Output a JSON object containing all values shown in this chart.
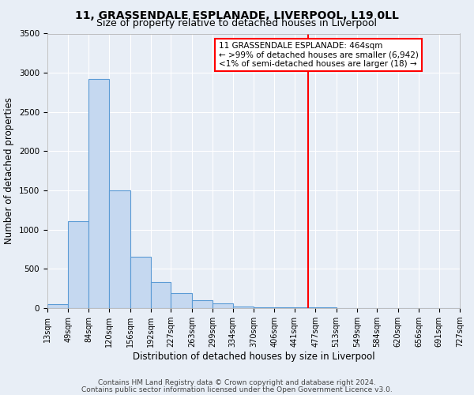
{
  "title": "11, GRASSENDALE ESPLANADE, LIVERPOOL, L19 0LL",
  "subtitle": "Size of property relative to detached houses in Liverpool",
  "xlabel": "Distribution of detached houses by size in Liverpool",
  "ylabel": "Number of detached properties",
  "bar_edges": [
    13,
    49,
    84,
    120,
    156,
    192,
    227,
    263,
    299,
    334,
    370,
    406,
    441,
    477,
    513,
    549,
    584,
    620,
    656,
    691,
    727
  ],
  "bar_heights": [
    50,
    1110,
    2920,
    1500,
    650,
    330,
    195,
    100,
    60,
    25,
    10,
    10,
    10,
    10,
    5,
    5,
    5,
    5,
    5,
    5
  ],
  "bar_color": "#c5d8f0",
  "bar_edge_color": "#5b9bd5",
  "property_line_x": 464,
  "property_line_color": "red",
  "annotation_lines": [
    "11 GRASSENDALE ESPLANADE: 464sqm",
    "← >99% of detached houses are smaller (6,942)",
    "<1% of semi-detached houses are larger (18) →"
  ],
  "ylim": [
    0,
    3500
  ],
  "tick_labels": [
    "13sqm",
    "49sqm",
    "84sqm",
    "120sqm",
    "156sqm",
    "192sqm",
    "227sqm",
    "263sqm",
    "299sqm",
    "334sqm",
    "370sqm",
    "406sqm",
    "441sqm",
    "477sqm",
    "513sqm",
    "549sqm",
    "584sqm",
    "620sqm",
    "656sqm",
    "691sqm",
    "727sqm"
  ],
  "footnote1": "Contains HM Land Registry data © Crown copyright and database right 2024.",
  "footnote2": "Contains public sector information licensed under the Open Government Licence v3.0.",
  "background_color": "#e8eef6",
  "grid_color": "#ffffff",
  "title_fontsize": 10,
  "subtitle_fontsize": 9,
  "axis_label_fontsize": 8.5,
  "tick_fontsize": 7,
  "footnote_fontsize": 6.5,
  "annotation_fontsize": 7.5
}
